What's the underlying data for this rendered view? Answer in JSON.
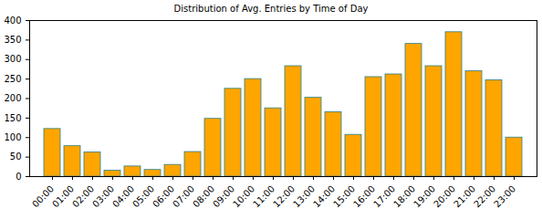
{
  "chart_data": {
    "type": "bar",
    "title": "Distribution of Avg. Entries by Time of Day",
    "categories": [
      "00:00",
      "01:00",
      "02:00",
      "03:00",
      "04:00",
      "05:00",
      "06:00",
      "07:00",
      "08:00",
      "09:00",
      "10:00",
      "11:00",
      "12:00",
      "13:00",
      "14:00",
      "15:00",
      "16:00",
      "17:00",
      "18:00",
      "19:00",
      "20:00",
      "21:00",
      "22:00",
      "23:00"
    ],
    "values": [
      122,
      78,
      62,
      15,
      26,
      17,
      30,
      63,
      148,
      225,
      250,
      175,
      283,
      202,
      165,
      107,
      255,
      262,
      340,
      283,
      370,
      270,
      247,
      100
    ],
    "color": "#ffa500",
    "ylim": [
      0,
      400
    ],
    "yticks": [
      0,
      50,
      100,
      150,
      200,
      250,
      300,
      350,
      400
    ],
    "grid": false
  }
}
